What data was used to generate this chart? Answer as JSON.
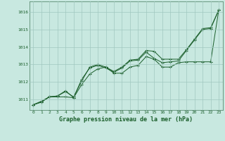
{
  "title": "Graphe pression niveau de la mer (hPa)",
  "bg_color": "#c8e8e0",
  "plot_bg_color": "#c8e8e0",
  "grid_color": "#a0c8c0",
  "line_color": "#1a5e2a",
  "xlim": [
    -0.5,
    23.5
  ],
  "ylim": [
    1010.4,
    1016.6
  ],
  "yticks": [
    1011,
    1012,
    1013,
    1014,
    1015,
    1016
  ],
  "xticks": [
    0,
    1,
    2,
    3,
    4,
    5,
    6,
    7,
    8,
    9,
    10,
    11,
    12,
    13,
    14,
    15,
    16,
    17,
    18,
    19,
    20,
    21,
    22,
    23
  ],
  "series": [
    [
      1010.7,
      1010.9,
      1011.15,
      1011.2,
      1011.45,
      1011.15,
      1012.05,
      1012.85,
      1013.0,
      1012.85,
      1012.6,
      1012.85,
      1013.25,
      1013.3,
      1013.8,
      1013.75,
      1013.3,
      1013.3,
      1013.3,
      1013.85,
      1014.45,
      1015.05,
      1015.1,
      1016.1
    ],
    [
      1010.7,
      1010.85,
      1011.15,
      1011.15,
      1011.15,
      1011.1,
      1011.85,
      1012.45,
      1012.75,
      1012.85,
      1012.5,
      1012.5,
      1012.85,
      1012.95,
      1013.45,
      1013.3,
      1012.85,
      1012.85,
      1013.1,
      1013.15,
      1013.15,
      1013.15,
      1013.15,
      1016.1
    ],
    [
      1010.7,
      1010.85,
      1011.15,
      1011.2,
      1011.5,
      1011.1,
      1012.15,
      1012.8,
      1012.95,
      1012.8,
      1012.55,
      1012.8,
      1013.2,
      1013.25,
      1013.7,
      1013.35,
      1013.1,
      1013.15,
      1013.2,
      1013.8,
      1014.4,
      1015.0,
      1015.05,
      1016.1
    ]
  ]
}
